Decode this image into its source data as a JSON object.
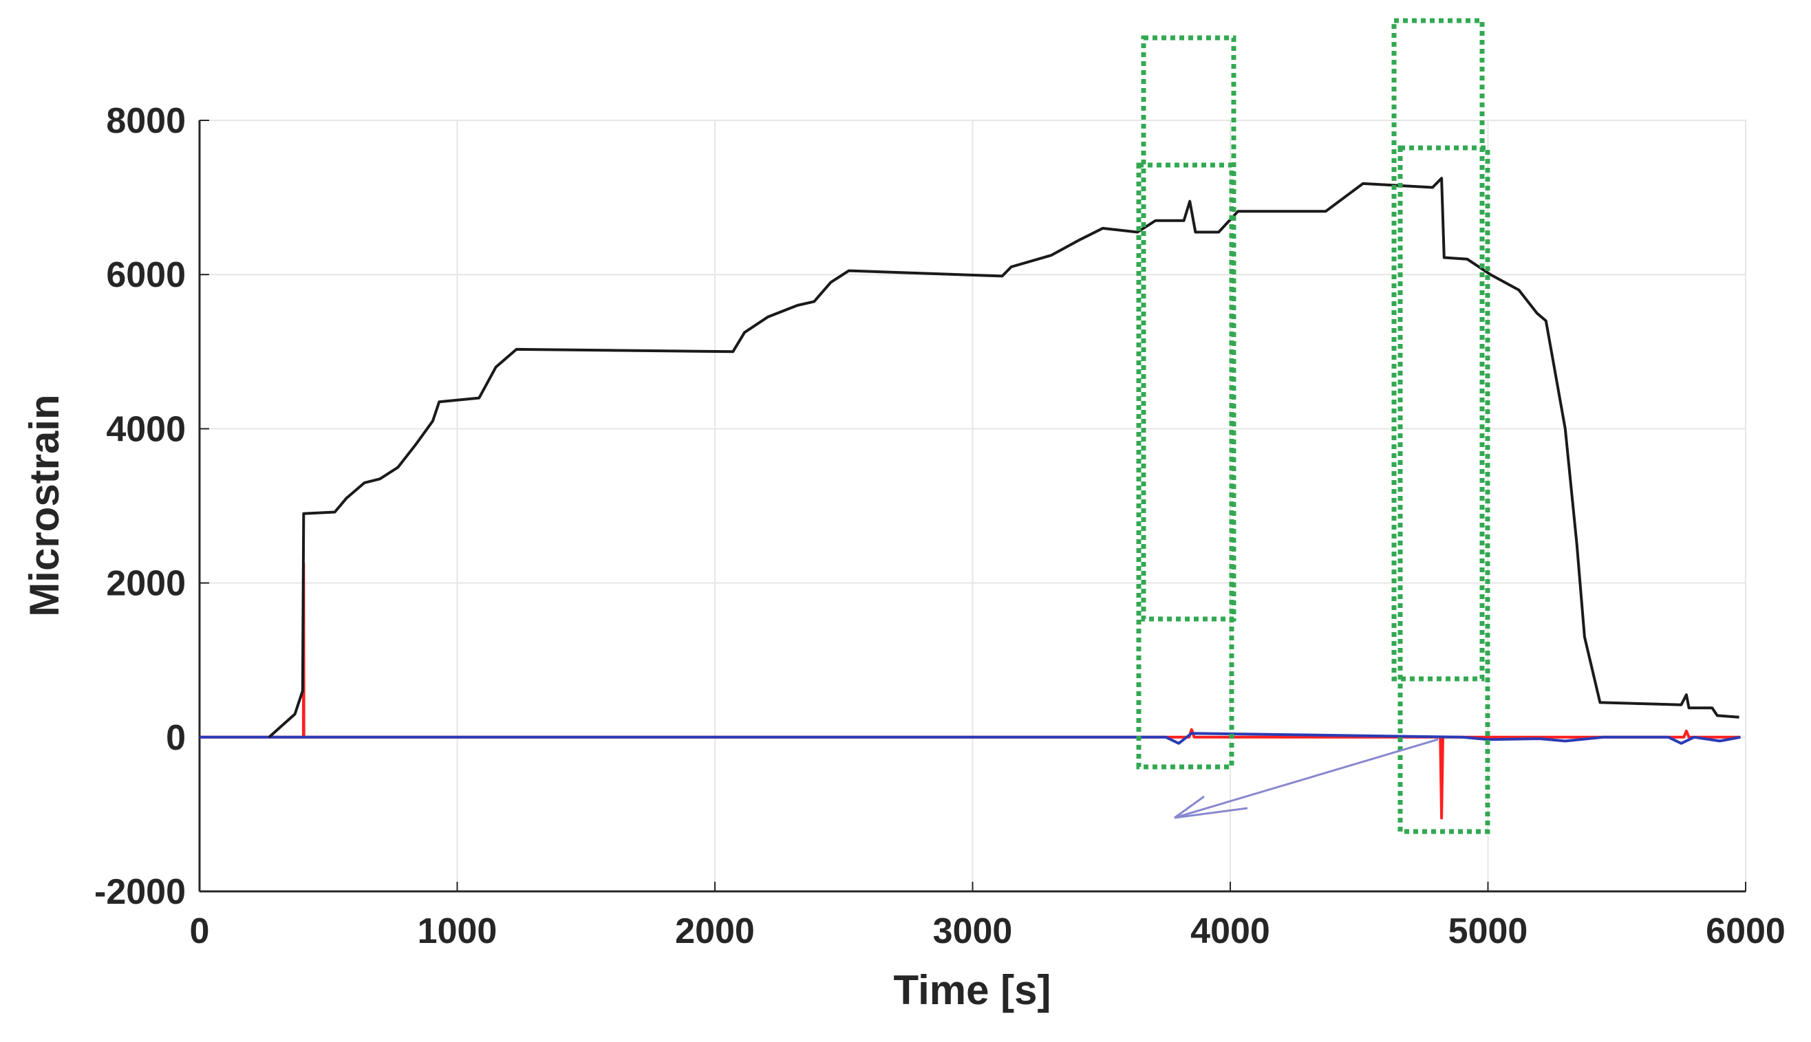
{
  "chart_data": {
    "type": "line",
    "xlabel": "Time [s]",
    "ylabel": "Microstrain",
    "xlim": [
      0,
      6000
    ],
    "ylim": [
      -2000,
      8000
    ],
    "xticks": [
      0,
      1000,
      2000,
      3000,
      4000,
      5000,
      6000
    ],
    "yticks": [
      -2000,
      0,
      2000,
      4000,
      6000,
      8000
    ],
    "grid": true,
    "series": [
      {
        "color": "#ff2020",
        "x": [
          0,
          403,
          404,
          405,
          3840,
          3850,
          3860,
          4815,
          4820,
          4825,
          5760,
          5770,
          5780,
          5980
        ],
        "values": [
          0,
          0,
          2250,
          0,
          0,
          100,
          0,
          0,
          -1050,
          0,
          0,
          80,
          0,
          0
        ]
      },
      {
        "color": "#2a3bb5",
        "x": [
          0,
          3750,
          3800,
          3850,
          4900,
          5000,
          5200,
          5300,
          5450,
          5700,
          5750,
          5800,
          5900,
          5980
        ],
        "values": [
          0,
          0,
          -80,
          50,
          0,
          -30,
          -20,
          -50,
          0,
          0,
          -80,
          0,
          -50,
          0
        ]
      },
      {
        "color": "#1a1a1a",
        "x": [
          270,
          320,
          370,
          400,
          404,
          525,
          570,
          640,
          700,
          770,
          840,
          905,
          930,
          1085,
          1150,
          1230,
          2070,
          2115,
          2205,
          2320,
          2385,
          2450,
          2520,
          3115,
          3150,
          3305,
          3415,
          3505,
          3640,
          3710,
          3820,
          3843,
          3865,
          3955,
          4030,
          4370,
          4515,
          4785,
          4820,
          4830,
          4920,
          5010,
          5120,
          5190,
          5225,
          5300,
          5345,
          5375,
          5435,
          5750,
          5770,
          5780,
          5870,
          5890,
          5975
        ],
        "values": [
          0,
          150,
          300,
          600,
          2900,
          2920,
          3100,
          3300,
          3350,
          3500,
          3800,
          4100,
          4350,
          4400,
          4800,
          5030,
          5000,
          5250,
          5450,
          5600,
          5650,
          5900,
          6050,
          5980,
          6100,
          6250,
          6450,
          6600,
          6550,
          6700,
          6700,
          6950,
          6550,
          6550,
          6820,
          6820,
          7180,
          7130,
          7250,
          6220,
          6200,
          6000,
          5800,
          5500,
          5400,
          4000,
          2500,
          1300,
          450,
          420,
          550,
          380,
          380,
          280,
          260
        ]
      }
    ]
  }
}
